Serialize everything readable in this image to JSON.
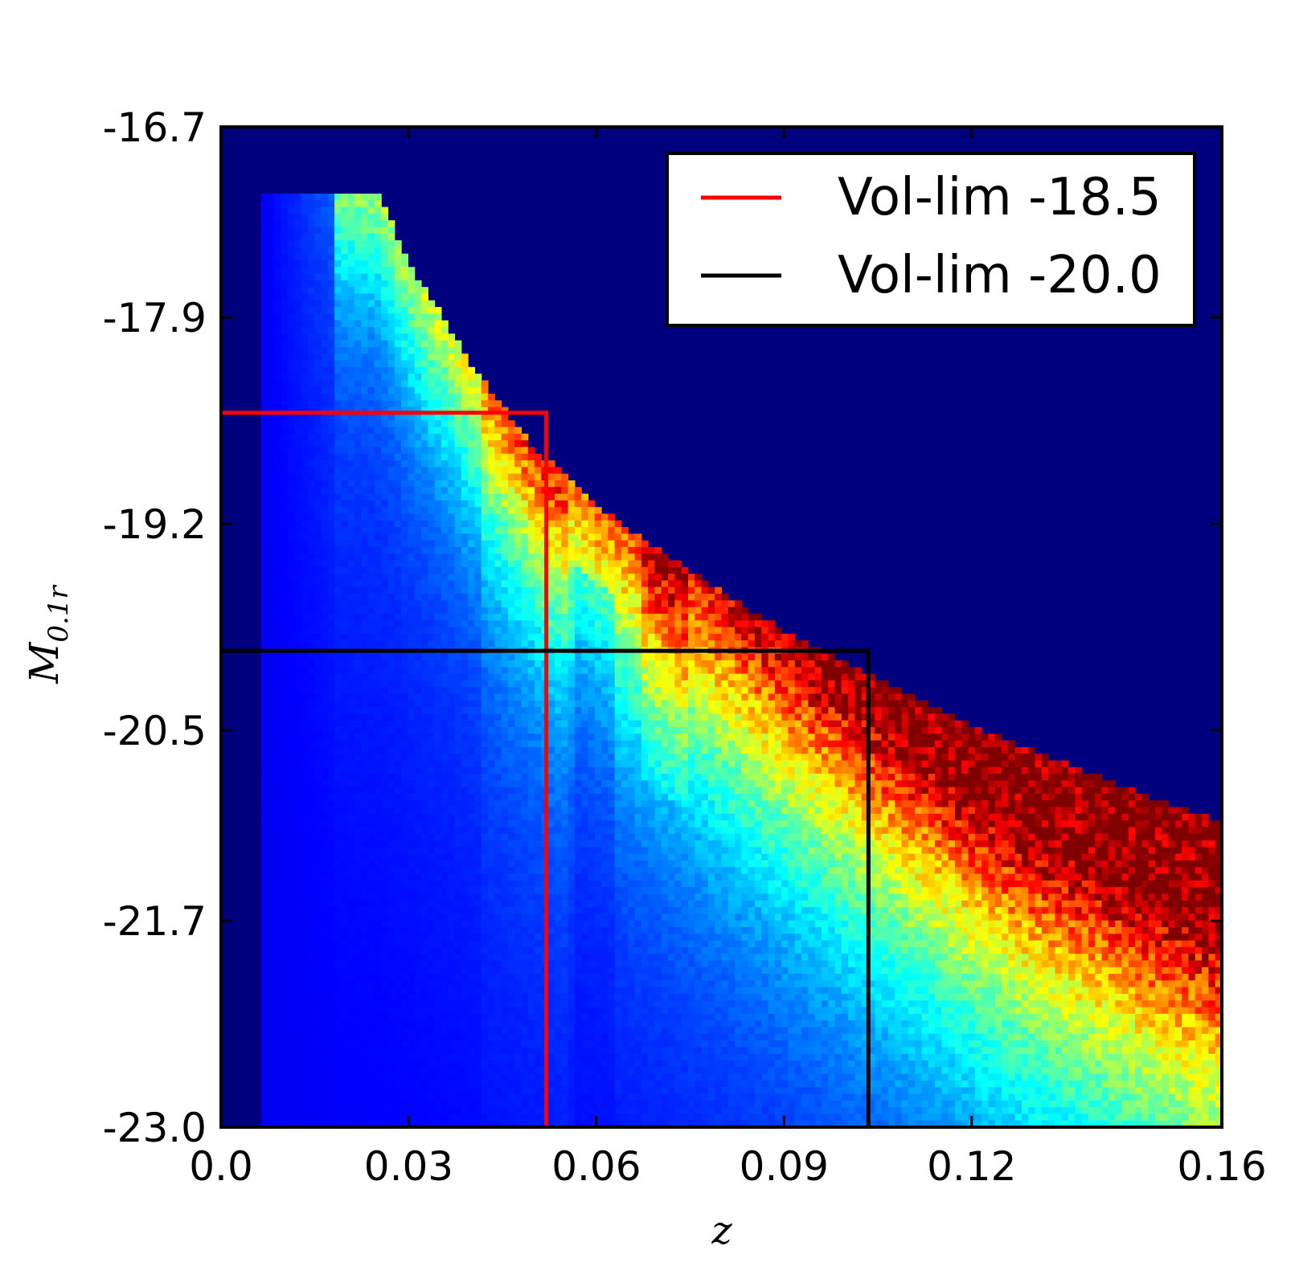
{
  "chart_data": {
    "type": "heatmap",
    "colormap": "jet",
    "x_range": [
      0.0,
      0.16
    ],
    "y_range": [
      -23.0,
      -16.7
    ],
    "y_axis_direction": "top = -16.7, bottom = -23.0 (brighter magnitudes at bottom)",
    "x_ticks": [
      0.0,
      0.03,
      0.06,
      0.09,
      0.12,
      0.16
    ],
    "x_tick_labels": [
      "0.0",
      "0.03",
      "0.06",
      "0.09",
      "0.12",
      "0.16"
    ],
    "y_ticks": [
      -16.7,
      -17.9,
      -19.2,
      -20.5,
      -21.7,
      -23.0
    ],
    "y_tick_labels": [
      "-16.7",
      "-17.9",
      "-19.2",
      "-20.5",
      "-21.7",
      "-23.0"
    ],
    "xlabel": "z",
    "ylabel_main": "M",
    "ylabel_sub": "0.1r",
    "flux_limit_boundary": [
      [
        0.0,
        -17.1
      ],
      [
        0.025,
        -17.1
      ],
      [
        0.03,
        -17.55
      ],
      [
        0.04,
        -18.2
      ],
      [
        0.05,
        -18.72
      ],
      [
        0.06,
        -19.08
      ],
      [
        0.07,
        -19.37
      ],
      [
        0.08,
        -19.63
      ],
      [
        0.09,
        -19.87
      ],
      [
        0.1,
        -20.08
      ],
      [
        0.11,
        -20.28
      ],
      [
        0.12,
        -20.47
      ],
      [
        0.13,
        -20.63
      ],
      [
        0.14,
        -20.79
      ],
      [
        0.15,
        -20.94
      ],
      [
        0.16,
        -21.08
      ]
    ],
    "density_peak": {
      "z": 0.13,
      "M": -20.7
    },
    "series": [
      {
        "name": "Vol-lim -18.5",
        "color": "#ff0000",
        "z_max": 0.052,
        "M_limit": -18.5
      },
      {
        "name": "Vol-lim -20.0",
        "color": "#000000",
        "z_max": 0.1035,
        "M_limit": -20.0
      }
    ],
    "legend_position": "top-right",
    "grid": false
  }
}
